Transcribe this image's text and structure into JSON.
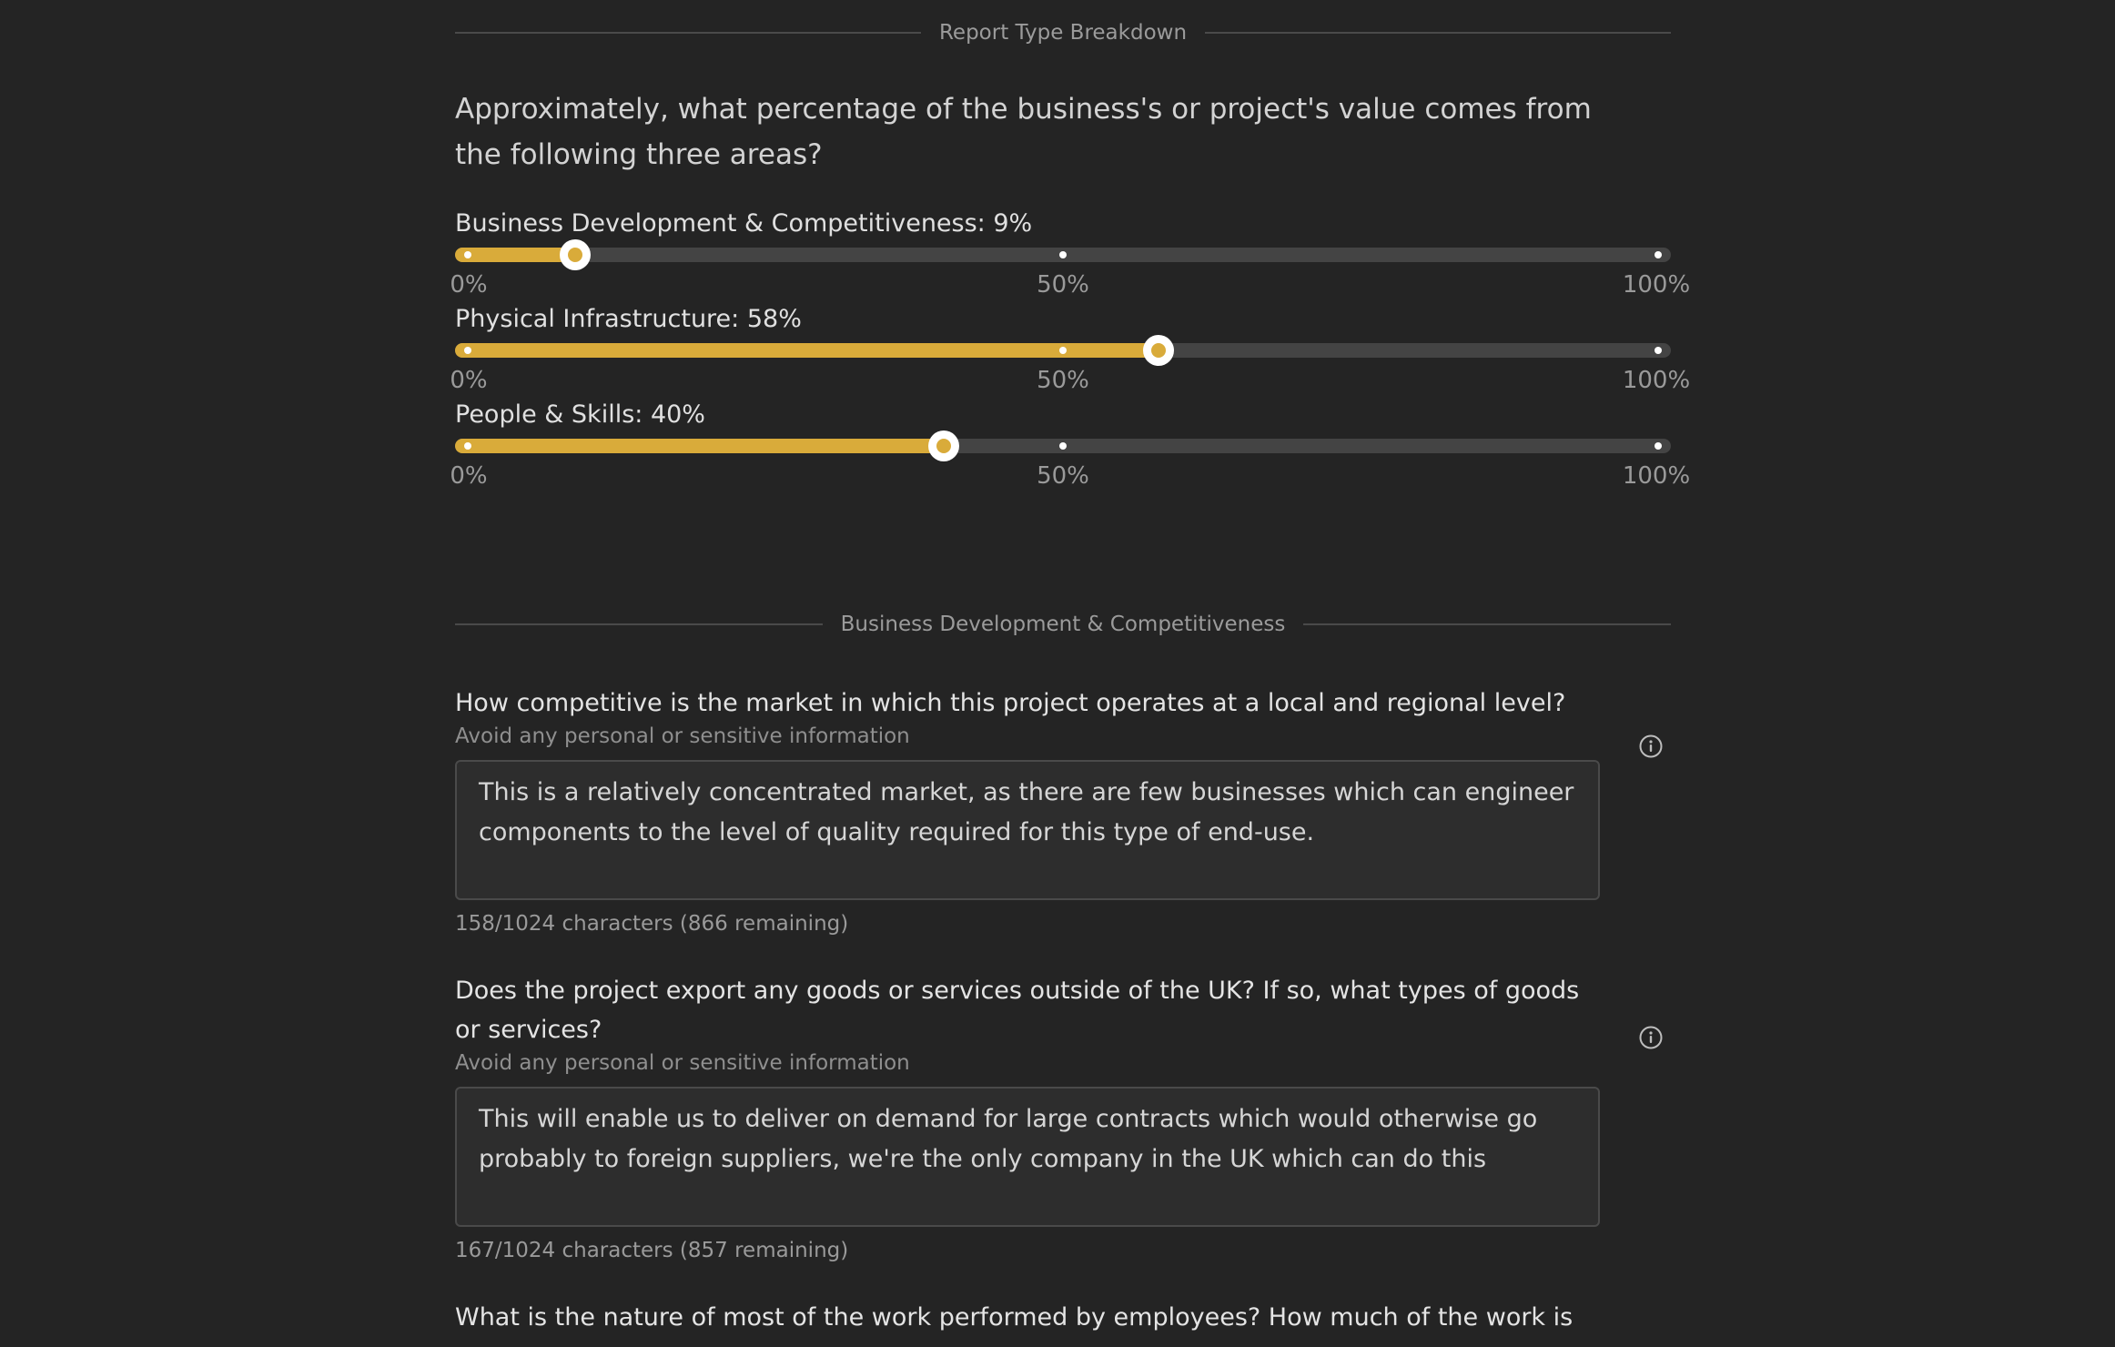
{
  "report_section": {
    "divider_label": "Report Type Breakdown",
    "question": "Approximately, what percentage of the business's or project's value comes from the following three areas?",
    "axis_labels": [
      "0%",
      "50%",
      "100%"
    ],
    "sliders": [
      {
        "label": "Business Development & Competitiveness: 9%",
        "value_percent": 9
      },
      {
        "label": "Physical Infrastructure: 58%",
        "value_percent": 58
      },
      {
        "label": "People & Skills: 40%",
        "value_percent": 40
      }
    ]
  },
  "bdc_section": {
    "divider_label": "Business Development & Competitiveness",
    "questions": [
      {
        "label": "How competitive is the market in which this project operates at a local and regional level?",
        "hint": "Avoid any personal or sensitive information",
        "answer": "This is a relatively concentrated market, as there are few businesses which can engineer components to the level of quality required for this type of end-use.",
        "counter": "158/1024 characters (866 remaining)"
      },
      {
        "label": "Does the project export any goods or services outside of the UK? If so, what types of goods or services?",
        "hint": "Avoid any personal or sensitive information",
        "answer": "This will enable us to deliver on demand for large contracts which would otherwise go probably to foreign suppliers, we're the only company in the UK which can do this",
        "counter": "167/1024 characters (857 remaining)"
      },
      {
        "label": "What is the nature of most of the work performed by employees? How much of the work is"
      }
    ]
  },
  "icons": {
    "info": "info-icon"
  },
  "colors": {
    "background": "#242424",
    "accent": "#d9ab3a",
    "track": "#444444",
    "text": "#e0e0e0",
    "muted": "#9a9a9a"
  }
}
